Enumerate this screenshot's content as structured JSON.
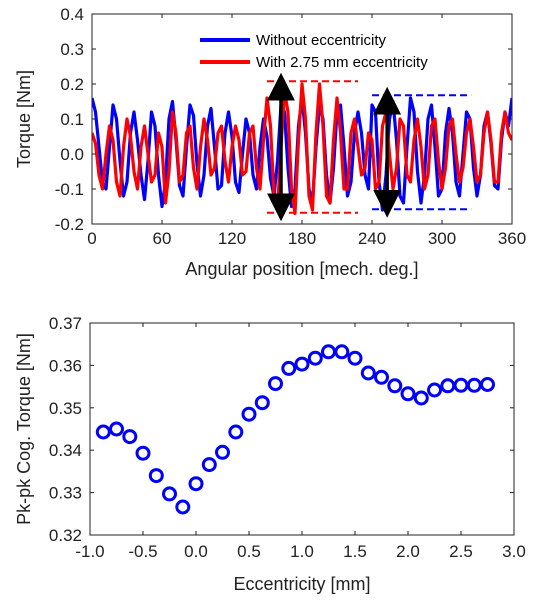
{
  "chart_data": [
    {
      "type": "line",
      "xlabel": "Angular position [mech. deg.]",
      "ylabel": "Torque [Nm]",
      "xlim": [
        0,
        360
      ],
      "ylim": [
        -0.2,
        0.4
      ],
      "xticks": [
        "0",
        "60",
        "120",
        "180",
        "240",
        "300",
        "360"
      ],
      "yticks": [
        "-0.2",
        "-0.1",
        "0.0",
        "0.1",
        "0.2",
        "0.3",
        "0.4"
      ],
      "legend_position": "top",
      "series": [
        {
          "name": "Without eccentricity",
          "color": "#0000ff",
          "x": [
            0,
            3,
            6,
            9,
            12,
            15,
            18,
            21,
            24,
            27,
            30,
            33,
            36,
            39,
            42,
            45,
            48,
            51,
            54,
            57,
            60,
            63,
            66,
            69,
            72,
            75,
            78,
            81,
            84,
            87,
            90,
            93,
            96,
            99,
            102,
            105,
            108,
            111,
            114,
            117,
            120,
            123,
            126,
            129,
            132,
            135,
            138,
            141,
            144,
            147,
            150,
            153,
            156,
            159,
            162,
            165,
            168,
            171,
            174,
            177,
            180,
            183,
            186,
            189,
            192,
            195,
            198,
            201,
            204,
            207,
            210,
            213,
            216,
            219,
            222,
            225,
            228,
            231,
            234,
            237,
            240,
            243,
            246,
            249,
            252,
            255,
            258,
            261,
            264,
            267,
            270,
            273,
            276,
            279,
            282,
            285,
            288,
            291,
            294,
            297,
            300,
            303,
            306,
            309,
            312,
            315,
            318,
            321,
            324,
            327,
            330,
            333,
            336,
            339,
            342,
            345,
            348,
            351,
            354,
            357,
            360
          ],
          "y": [
            0.16,
            0.12,
            0.02,
            -0.08,
            -0.1,
            0.02,
            0.14,
            0.1,
            -0.02,
            -0.12,
            -0.08,
            0.06,
            0.12,
            0.04,
            -0.06,
            -0.13,
            -0.02,
            0.12,
            0.08,
            -0.06,
            -0.15,
            -0.08,
            0.1,
            0.15,
            0.04,
            -0.09,
            -0.12,
            0.02,
            0.14,
            0.11,
            -0.03,
            -0.12,
            -0.06,
            0.08,
            0.13,
            0.02,
            -0.1,
            -0.09,
            0.06,
            0.12,
            0.05,
            -0.08,
            -0.11,
            0.0,
            0.1,
            0.06,
            -0.06,
            -0.1,
            0.02,
            0.1,
            0.05,
            -0.07,
            -0.12,
            -0.02,
            0.14,
            0.12,
            -0.04,
            -0.15,
            -0.1,
            0.08,
            0.16,
            0.06,
            -0.1,
            -0.14,
            0.02,
            0.14,
            0.1,
            -0.06,
            -0.14,
            -0.04,
            0.12,
            0.14,
            0.02,
            -0.12,
            -0.08,
            0.06,
            0.12,
            0.06,
            -0.06,
            -0.1,
            0.14,
            0.12,
            -0.08,
            -0.16,
            -0.06,
            0.1,
            0.15,
            0.04,
            -0.12,
            -0.14,
            0.02,
            0.16,
            0.12,
            -0.05,
            -0.14,
            -0.06,
            0.1,
            0.14,
            0.02,
            -0.12,
            -0.1,
            0.06,
            0.13,
            0.06,
            -0.08,
            -0.12,
            0.0,
            0.12,
            0.1,
            -0.04,
            -0.12,
            -0.06,
            0.08,
            0.12,
            0.03,
            -0.09,
            -0.1,
            0.04,
            0.12,
            0.08,
            0.16
          ]
        },
        {
          "name": "With 2.75 mm eccentricity",
          "color": "#ff0000",
          "x": [
            0,
            3,
            6,
            9,
            12,
            15,
            18,
            21,
            24,
            27,
            30,
            33,
            36,
            39,
            42,
            45,
            48,
            51,
            54,
            57,
            60,
            63,
            66,
            69,
            72,
            75,
            78,
            81,
            84,
            87,
            90,
            93,
            96,
            99,
            102,
            105,
            108,
            111,
            114,
            117,
            120,
            123,
            126,
            129,
            132,
            135,
            138,
            141,
            144,
            147,
            150,
            153,
            156,
            159,
            162,
            165,
            168,
            171,
            174,
            177,
            180,
            183,
            186,
            189,
            192,
            195,
            198,
            201,
            204,
            207,
            210,
            213,
            216,
            219,
            222,
            225,
            228,
            231,
            234,
            237,
            240,
            243,
            246,
            249,
            252,
            255,
            258,
            261,
            264,
            267,
            270,
            273,
            276,
            279,
            282,
            285,
            288,
            291,
            294,
            297,
            300,
            303,
            306,
            309,
            312,
            315,
            318,
            321,
            324,
            327,
            330,
            333,
            336,
            339,
            342,
            345,
            348,
            351,
            354,
            357,
            360
          ],
          "y": [
            0.06,
            0.03,
            -0.06,
            -0.1,
            0.0,
            0.08,
            0.04,
            -0.08,
            -0.12,
            0.02,
            0.1,
            0.05,
            -0.05,
            -0.1,
            0.02,
            0.08,
            0.0,
            -0.08,
            -0.06,
            0.06,
            0.02,
            -0.14,
            -0.05,
            0.12,
            0.06,
            -0.08,
            -0.06,
            0.06,
            0.08,
            -0.04,
            -0.1,
            0.02,
            0.1,
            0.04,
            -0.06,
            -0.04,
            0.06,
            0.08,
            -0.02,
            -0.08,
            0.02,
            0.08,
            0.04,
            -0.06,
            -0.05,
            0.06,
            0.08,
            -0.04,
            -0.1,
            0.04,
            0.16,
            0.08,
            -0.12,
            -0.16,
            0.02,
            0.18,
            0.12,
            -0.1,
            -0.17,
            0.04,
            0.2,
            0.1,
            -0.12,
            -0.16,
            0.06,
            0.2,
            0.08,
            -0.12,
            -0.14,
            0.04,
            0.16,
            0.06,
            -0.1,
            -0.1,
            0.06,
            0.1,
            0.02,
            -0.06,
            -0.04,
            0.06,
            0.04,
            -0.1,
            -0.08,
            0.08,
            0.12,
            0.0,
            -0.1,
            -0.04,
            0.1,
            0.08,
            -0.06,
            -0.08,
            0.04,
            0.1,
            0.02,
            -0.1,
            -0.06,
            0.08,
            0.1,
            -0.02,
            -0.1,
            -0.04,
            0.08,
            0.1,
            0.0,
            -0.08,
            -0.04,
            0.06,
            0.1,
            0.02,
            -0.08,
            -0.06,
            0.06,
            0.12,
            0.04,
            -0.08,
            -0.08,
            0.06,
            0.12,
            0.06,
            0.04
          ]
        }
      ],
      "annotations": [
        {
          "kind": "peak-to-peak",
          "series": "With 2.75 mm eccentricity",
          "x_range": [
            150,
            228
          ],
          "y_range": [
            -0.168,
            0.208
          ],
          "arrow_x": 162
        },
        {
          "kind": "peak-to-peak",
          "series": "Without eccentricity",
          "x_range": [
            240,
            325
          ],
          "y_range": [
            -0.158,
            0.168
          ],
          "arrow_x": 253
        }
      ]
    },
    {
      "type": "scatter",
      "xlabel": "Eccentricity [mm]",
      "ylabel": "Pk-pk Cog. Torque [Nm]",
      "xlim": [
        -1.0,
        3.0
      ],
      "ylim": [
        0.32,
        0.37
      ],
      "xticks": [
        "-1.0",
        "-0.5",
        "0.0",
        "0.5",
        "1.0",
        "1.5",
        "2.0",
        "2.5",
        "3.0"
      ],
      "yticks": [
        "0.32",
        "0.33",
        "0.34",
        "0.35",
        "0.36",
        "0.37"
      ],
      "marker": "circle-open",
      "color": "#0000ff",
      "x": [
        -0.875,
        -0.75,
        -0.625,
        -0.5,
        -0.375,
        -0.25,
        -0.125,
        0.0,
        0.125,
        0.25,
        0.375,
        0.5,
        0.625,
        0.75,
        0.875,
        1.0,
        1.125,
        1.25,
        1.375,
        1.5,
        1.625,
        1.75,
        1.875,
        2.0,
        2.125,
        2.25,
        2.375,
        2.5,
        2.625,
        2.75
      ],
      "y": [
        0.3443,
        0.345,
        0.3432,
        0.3393,
        0.334,
        0.3297,
        0.3266,
        0.3321,
        0.3366,
        0.3395,
        0.3443,
        0.3485,
        0.3512,
        0.3557,
        0.3593,
        0.3603,
        0.3617,
        0.3632,
        0.3632,
        0.3617,
        0.3582,
        0.3572,
        0.3552,
        0.3533,
        0.3523,
        0.3542,
        0.3552,
        0.3553,
        0.3553,
        0.3555
      ]
    }
  ]
}
